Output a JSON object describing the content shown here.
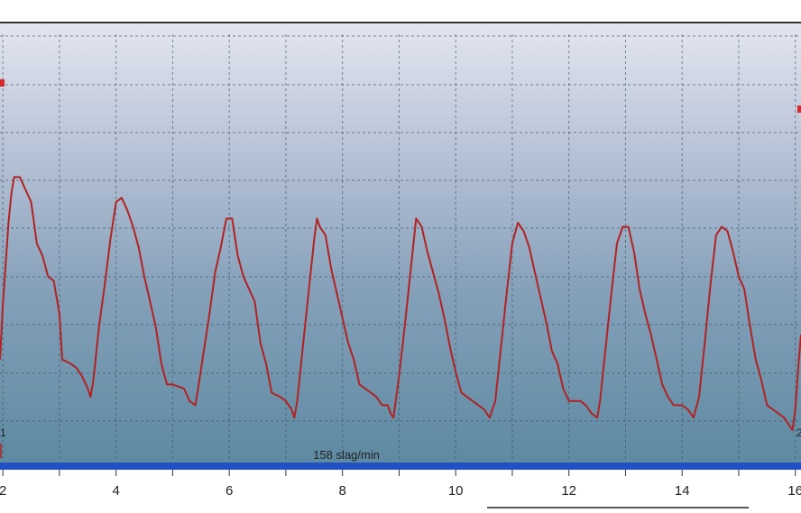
{
  "chart_data": {
    "type": "line",
    "title": "",
    "xlabel": "",
    "ylabel": "",
    "xlim": [
      1.95,
      16.1
    ],
    "ylim": [
      0,
      1
    ],
    "x_tick_labels": [
      "2",
      "4",
      "6",
      "8",
      "10",
      "12",
      "14",
      "16"
    ],
    "grid": true,
    "rate_text": "158 slag/min",
    "edge_labels": [
      "1",
      "2"
    ],
    "series": [
      {
        "color": "#b22222",
        "points": [
          [
            1.95,
            0.22
          ],
          [
            2.0,
            0.35
          ],
          [
            2.05,
            0.45
          ],
          [
            2.1,
            0.55
          ],
          [
            2.15,
            0.62
          ],
          [
            2.2,
            0.66
          ],
          [
            2.3,
            0.66
          ],
          [
            2.4,
            0.63
          ],
          [
            2.5,
            0.6
          ],
          [
            2.55,
            0.55
          ],
          [
            2.6,
            0.5
          ],
          [
            2.7,
            0.47
          ],
          [
            2.8,
            0.42
          ],
          [
            2.9,
            0.41
          ],
          [
            3.0,
            0.33
          ],
          [
            3.05,
            0.22
          ],
          [
            3.2,
            0.21
          ],
          [
            3.3,
            0.2
          ],
          [
            3.4,
            0.18
          ],
          [
            3.5,
            0.15
          ],
          [
            3.55,
            0.13
          ],
          [
            3.6,
            0.17
          ],
          [
            3.7,
            0.3
          ],
          [
            3.8,
            0.4
          ],
          [
            3.9,
            0.51
          ],
          [
            4.0,
            0.6
          ],
          [
            4.1,
            0.61
          ],
          [
            4.2,
            0.58
          ],
          [
            4.3,
            0.54
          ],
          [
            4.4,
            0.49
          ],
          [
            4.5,
            0.42
          ],
          [
            4.6,
            0.36
          ],
          [
            4.7,
            0.3
          ],
          [
            4.8,
            0.21
          ],
          [
            4.9,
            0.16
          ],
          [
            5.0,
            0.16
          ],
          [
            5.2,
            0.15
          ],
          [
            5.3,
            0.12
          ],
          [
            5.4,
            0.11
          ],
          [
            5.45,
            0.15
          ],
          [
            5.55,
            0.24
          ],
          [
            5.65,
            0.33
          ],
          [
            5.75,
            0.43
          ],
          [
            5.85,
            0.49
          ],
          [
            5.95,
            0.56
          ],
          [
            6.05,
            0.56
          ],
          [
            6.15,
            0.47
          ],
          [
            6.25,
            0.42
          ],
          [
            6.35,
            0.39
          ],
          [
            6.45,
            0.36
          ],
          [
            6.55,
            0.26
          ],
          [
            6.65,
            0.21
          ],
          [
            6.75,
            0.14
          ],
          [
            6.9,
            0.13
          ],
          [
            7.0,
            0.12
          ],
          [
            7.1,
            0.1
          ],
          [
            7.15,
            0.08
          ],
          [
            7.2,
            0.12
          ],
          [
            7.3,
            0.25
          ],
          [
            7.4,
            0.38
          ],
          [
            7.5,
            0.51
          ],
          [
            7.55,
            0.56
          ],
          [
            7.6,
            0.54
          ],
          [
            7.7,
            0.52
          ],
          [
            7.8,
            0.44
          ],
          [
            7.9,
            0.38
          ],
          [
            8.0,
            0.32
          ],
          [
            8.1,
            0.26
          ],
          [
            8.2,
            0.22
          ],
          [
            8.3,
            0.16
          ],
          [
            8.4,
            0.15
          ],
          [
            8.6,
            0.13
          ],
          [
            8.7,
            0.11
          ],
          [
            8.8,
            0.11
          ],
          [
            8.85,
            0.09
          ],
          [
            8.9,
            0.08
          ],
          [
            8.95,
            0.13
          ],
          [
            9.0,
            0.18
          ],
          [
            9.1,
            0.3
          ],
          [
            9.2,
            0.43
          ],
          [
            9.3,
            0.56
          ],
          [
            9.4,
            0.54
          ],
          [
            9.5,
            0.48
          ],
          [
            9.6,
            0.43
          ],
          [
            9.7,
            0.38
          ],
          [
            9.8,
            0.32
          ],
          [
            9.9,
            0.25
          ],
          [
            10.0,
            0.19
          ],
          [
            10.1,
            0.14
          ],
          [
            10.3,
            0.12
          ],
          [
            10.4,
            0.11
          ],
          [
            10.5,
            0.1
          ],
          [
            10.6,
            0.08
          ],
          [
            10.7,
            0.12
          ],
          [
            10.8,
            0.25
          ],
          [
            10.9,
            0.38
          ],
          [
            11.0,
            0.5
          ],
          [
            11.1,
            0.55
          ],
          [
            11.2,
            0.53
          ],
          [
            11.3,
            0.49
          ],
          [
            11.4,
            0.43
          ],
          [
            11.5,
            0.37
          ],
          [
            11.6,
            0.31
          ],
          [
            11.7,
            0.24
          ],
          [
            11.8,
            0.21
          ],
          [
            11.9,
            0.15
          ],
          [
            12.0,
            0.12
          ],
          [
            12.2,
            0.12
          ],
          [
            12.3,
            0.11
          ],
          [
            12.4,
            0.09
          ],
          [
            12.5,
            0.08
          ],
          [
            12.55,
            0.12
          ],
          [
            12.65,
            0.25
          ],
          [
            12.75,
            0.38
          ],
          [
            12.85,
            0.5
          ],
          [
            12.95,
            0.54
          ],
          [
            13.05,
            0.54
          ],
          [
            13.15,
            0.48
          ],
          [
            13.25,
            0.39
          ],
          [
            13.35,
            0.33
          ],
          [
            13.45,
            0.28
          ],
          [
            13.55,
            0.22
          ],
          [
            13.65,
            0.16
          ],
          [
            13.75,
            0.13
          ],
          [
            13.85,
            0.11
          ],
          [
            14.0,
            0.11
          ],
          [
            14.1,
            0.1
          ],
          [
            14.2,
            0.08
          ],
          [
            14.3,
            0.13
          ],
          [
            14.4,
            0.26
          ],
          [
            14.5,
            0.4
          ],
          [
            14.6,
            0.52
          ],
          [
            14.7,
            0.54
          ],
          [
            14.8,
            0.53
          ],
          [
            14.9,
            0.48
          ],
          [
            15.0,
            0.42
          ],
          [
            15.1,
            0.39
          ],
          [
            15.2,
            0.3
          ],
          [
            15.3,
            0.22
          ],
          [
            15.4,
            0.17
          ],
          [
            15.5,
            0.11
          ],
          [
            15.6,
            0.1
          ],
          [
            15.7,
            0.09
          ],
          [
            15.8,
            0.08
          ],
          [
            15.9,
            0.06
          ],
          [
            15.95,
            0.05
          ],
          [
            16.0,
            0.1
          ],
          [
            16.05,
            0.2
          ],
          [
            16.1,
            0.28
          ]
        ]
      }
    ]
  }
}
